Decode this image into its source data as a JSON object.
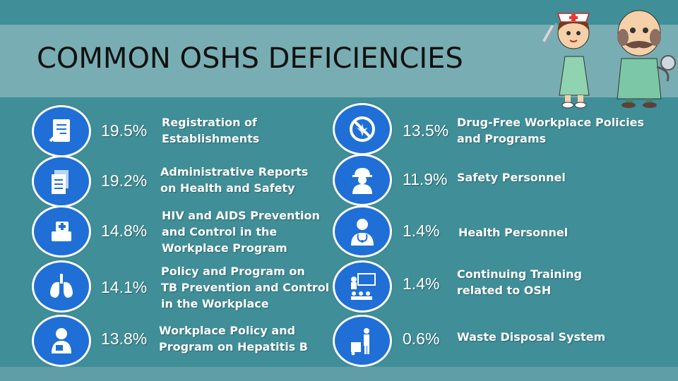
{
  "slide": {
    "title": "COMMON OSHS DEFICIENCIES",
    "colors": {
      "background": "#3f8e98",
      "title_band": "#78aeb3",
      "icon_circle": "#1f6fd6"
    }
  },
  "left": [
    {
      "percent": "19.5%",
      "label_lines": [
        "Registration of",
        "Establishments"
      ],
      "icon": "document-icon"
    },
    {
      "percent": "19.2%",
      "label_lines": [
        "Administrative Reports",
        "on Health and Safety"
      ],
      "icon": "reports-icon"
    },
    {
      "percent": "14.8%",
      "label_lines": [
        "HIV and AIDS Prevention",
        "and Control in the",
        "Workplace Program"
      ],
      "icon": "medical-book-icon"
    },
    {
      "percent": "14.1%",
      "label_lines": [
        "Policy and Program on",
        "TB Prevention and Control",
        "in the Workplace"
      ],
      "icon": "lungs-icon"
    },
    {
      "percent": "13.8%",
      "label_lines": [
        "Workplace Policy and",
        "Program on Hepatitis B"
      ],
      "icon": "patient-icon"
    }
  ],
  "right": [
    {
      "percent": "13.5%",
      "label_lines": [
        "Drug-Free Workplace Policies",
        "and Programs"
      ],
      "icon": "no-drugs-icon"
    },
    {
      "percent": "11.9%",
      "label_lines": [
        "Safety Personnel"
      ],
      "icon": "hard-hat-worker-icon"
    },
    {
      "percent": "1.4%",
      "label_lines": [
        "Health Personnel"
      ],
      "icon": "doctor-icon"
    },
    {
      "percent": "1.4%",
      "label_lines": [
        "Continuing Training",
        "related to OSH"
      ],
      "icon": "training-icon"
    },
    {
      "percent": "0.6%",
      "label_lines": [
        "Waste Disposal System"
      ],
      "icon": "waste-disposal-icon"
    }
  ]
}
